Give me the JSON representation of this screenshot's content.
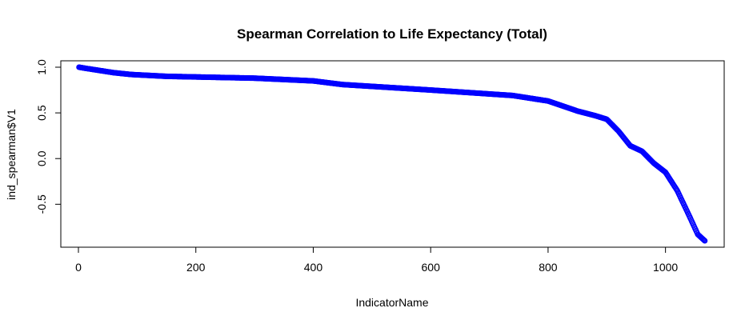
{
  "chart_data": {
    "type": "scatter",
    "title": "Spearman Correlation to Life Expectancy (Total)",
    "xlabel": "IndicatorName",
    "ylabel": "ind_spearman$V1",
    "xlim": [
      -30,
      1100
    ],
    "ylim": [
      -0.97,
      1.07
    ],
    "x_ticks": [
      0,
      200,
      400,
      600,
      800,
      1000
    ],
    "y_ticks": [
      -0.5,
      0.0,
      0.5,
      1.0
    ],
    "x_tick_labels": [
      "0",
      "200",
      "400",
      "600",
      "800",
      "1000"
    ],
    "y_tick_labels": [
      "-0.5",
      "0.0",
      "0.5",
      "1.0"
    ],
    "grid": false,
    "marker": "open-circle",
    "color": "#0000ff",
    "n_points": 1067,
    "curve_knots": [
      [
        1,
        1.0
      ],
      [
        10,
        0.99
      ],
      [
        30,
        0.97
      ],
      [
        60,
        0.94
      ],
      [
        90,
        0.92
      ],
      [
        150,
        0.9
      ],
      [
        300,
        0.88
      ],
      [
        400,
        0.85
      ],
      [
        450,
        0.81
      ],
      [
        600,
        0.75
      ],
      [
        740,
        0.69
      ],
      [
        800,
        0.63
      ],
      [
        850,
        0.52
      ],
      [
        880,
        0.47
      ],
      [
        900,
        0.43
      ],
      [
        920,
        0.3
      ],
      [
        940,
        0.14
      ],
      [
        960,
        0.08
      ],
      [
        980,
        -0.05
      ],
      [
        1000,
        -0.15
      ],
      [
        1020,
        -0.35
      ],
      [
        1040,
        -0.62
      ],
      [
        1055,
        -0.83
      ],
      [
        1067,
        -0.9
      ]
    ]
  }
}
